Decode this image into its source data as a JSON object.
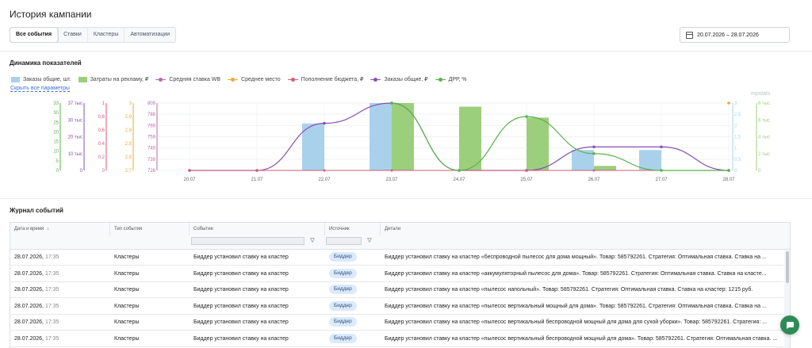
{
  "page": {
    "title": "История кампании",
    "date_range": "20.07.2026 – 28.07.2026",
    "dynamics_title": "Динамика показателей",
    "journal_title": "Журнал событий",
    "hide_params": "Скрыть все параметры",
    "watermark": "mpstats"
  },
  "tabs": [
    {
      "label": "Все события",
      "active": true
    },
    {
      "label": "Ставки",
      "active": false
    },
    {
      "label": "Кластеры",
      "active": false
    },
    {
      "label": "Автоматизации",
      "active": false
    }
  ],
  "colors": {
    "orders_bar": "#a9d1ec",
    "spend_bar": "#9ccf7c",
    "avg_bid": "#b96aa6",
    "avg_place": "#f0a830",
    "budget": "#d75a78",
    "orders_line": "#8a4fb1",
    "drr": "#58b24a",
    "link": "#3b6fd6"
  },
  "legend": [
    {
      "label": "Заказы общие, шт.",
      "kind": "box",
      "color": "#a9d1ec"
    },
    {
      "label": "Затраты на рекламу, ₽",
      "kind": "box",
      "color": "#9ccf7c"
    },
    {
      "label": "Средняя ставка WB",
      "kind": "line",
      "color": "#b96aa6"
    },
    {
      "label": "Среднее место",
      "kind": "line",
      "color": "#f0a830"
    },
    {
      "label": "Пополнение бюджета, ₽",
      "kind": "line",
      "color": "#d75a78"
    },
    {
      "label": "Заказы общие, ₽",
      "kind": "line",
      "color": "#8a4fb1"
    },
    {
      "label": "ДРР, %",
      "kind": "line",
      "color": "#58b24a"
    }
  ],
  "chart_data": {
    "type": "bar",
    "categories": [
      "20.07",
      "21.07",
      "22.07",
      "23.07",
      "24.07",
      "25.07",
      "26.07",
      "27.07",
      "28.07"
    ],
    "series": [
      {
        "name": "Заказы общие, шт.",
        "kind": "bar",
        "color": "#a9d1ec",
        "values": [
          0,
          0,
          23,
          33,
          0,
          0,
          10,
          10,
          0
        ]
      },
      {
        "name": "Затраты на рекламу, ₽",
        "kind": "bar",
        "color": "#9ccf7c",
        "values": [
          0,
          0,
          0,
          37000,
          35000,
          29000,
          2500,
          0,
          0
        ]
      },
      {
        "name": "Заказы общие, ₽",
        "kind": "line",
        "color": "#8a4fb1",
        "values": [
          0,
          0,
          0.7,
          1,
          0,
          0,
          0.35,
          0.35,
          0
        ]
      },
      {
        "name": "ДРР, %",
        "kind": "line",
        "color": "#58b24a",
        "values": [
          null,
          null,
          null,
          8,
          0,
          6.4,
          2,
          0,
          0
        ]
      },
      {
        "name": "Пополнение бюджета, ₽",
        "kind": "line",
        "color": "#d75a78",
        "values": [
          0,
          0,
          0,
          0,
          0,
          0,
          0,
          0,
          0
        ]
      },
      {
        "name": "Среднее место",
        "kind": "point",
        "color": "#f0a830",
        "values": [
          null,
          null,
          null,
          null,
          null,
          null,
          null,
          null,
          3
        ]
      }
    ],
    "axes": {
      "left": [
        {
          "color": "#58b24a",
          "ticks": [
            "33",
            "30",
            "25",
            "20",
            "15",
            "10",
            "5",
            "0"
          ],
          "max": 33,
          "min": 0
        },
        {
          "color": "#8a4fb1",
          "ticks": [
            "37 тыс",
            "30 тыс",
            "20 тыс",
            "10 тыс",
            "0"
          ],
          "max": 37000,
          "min": 0
        },
        {
          "color": "#d75a78",
          "ticks": [
            "1",
            "0,8",
            "0,6",
            "0,4",
            "0,2",
            "0"
          ],
          "max": 1,
          "min": 0
        },
        {
          "color": "#f0a830",
          "ticks": [
            "3",
            "2,9",
            "2,9",
            "2,8",
            "2,8",
            "2,7"
          ],
          "max": 3,
          "min": 2.7
        },
        {
          "color": "#b96aa6",
          "ticks": [
            "809",
            "788",
            "769",
            "759",
            "749",
            "739",
            "726"
          ],
          "max": 809,
          "min": 726
        }
      ],
      "right": [
        {
          "color": "#a9d1ec",
          "ticks": [
            "3",
            "2,5",
            "2",
            "1,5",
            "1",
            "0,5",
            "0"
          ],
          "max": 3,
          "min": 0
        },
        {
          "color": "#9ccf7c",
          "ticks": [
            "8 тыс",
            "6 тыс",
            "4 тыс",
            "2 тыс",
            "0"
          ],
          "max": 8000,
          "min": 0
        }
      ]
    }
  },
  "table": {
    "columns": [
      "Дата и время",
      "Тип события",
      "Событие",
      "Источник",
      "Детали"
    ],
    "sort_arrow": "↓",
    "rows": [
      {
        "date": "28.07.2026,",
        "time": "17:35",
        "type": "Кластеры",
        "event": "Биддер установил ставку на кластер",
        "source": "Биддер",
        "details": "Биддер установил ставку на кластер «беспроводной пылесос для дома мощный». Товар: 585792261. Стратегия: Оптимальная ставка. Ставка на ..."
      },
      {
        "date": "28.07.2026,",
        "time": "17:35",
        "type": "Кластеры",
        "event": "Биддер установил ставку на кластер",
        "source": "Биддер",
        "details": "Биддер установил ставку на кластер «аккумуляторный пылесос для дома». Товар: 585792261. Стратегия: Оптимальная ставка. Ставка на кластe..."
      },
      {
        "date": "28.07.2026,",
        "time": "17:35",
        "type": "Кластеры",
        "event": "Биддер установил ставку на кластер",
        "source": "Биддер",
        "details": "Биддер установил ставку на кластер «пылесос напольный». Товар: 585792261. Стратегия: Оптимальная ставка. Ставка на кластер: 1215 руб."
      },
      {
        "date": "28.07.2026,",
        "time": "17:35",
        "type": "Кластеры",
        "event": "Биддер установил ставку на кластер",
        "source": "Биддер",
        "details": "Биддер установил ставку на кластер «пылесос вертикальный мощный для дома». Товар: 585792261. Стратегия: Оптимальная ставка. Ставка на ..."
      },
      {
        "date": "28.07.2026,",
        "time": "17:35",
        "type": "Кластеры",
        "event": "Биддер установил ставку на кластер",
        "source": "Биддер",
        "details": "Биддер установил ставку на кластер «пылесос вертикальный беспроводной мощный для дома для сухой уборки». Товар: 585792261. Стратегия: ..."
      },
      {
        "date": "28.07.2026,",
        "time": "17:35",
        "type": "Кластеры",
        "event": "Биддер установил ставку на кластер",
        "source": "Биддер",
        "details": "Биддер установил ставку на кластер «пылесос вертикальный беспроводной мощный для дома». Товар: 585792261. Стратегия: Оптимальная ставка. ..."
      }
    ]
  }
}
